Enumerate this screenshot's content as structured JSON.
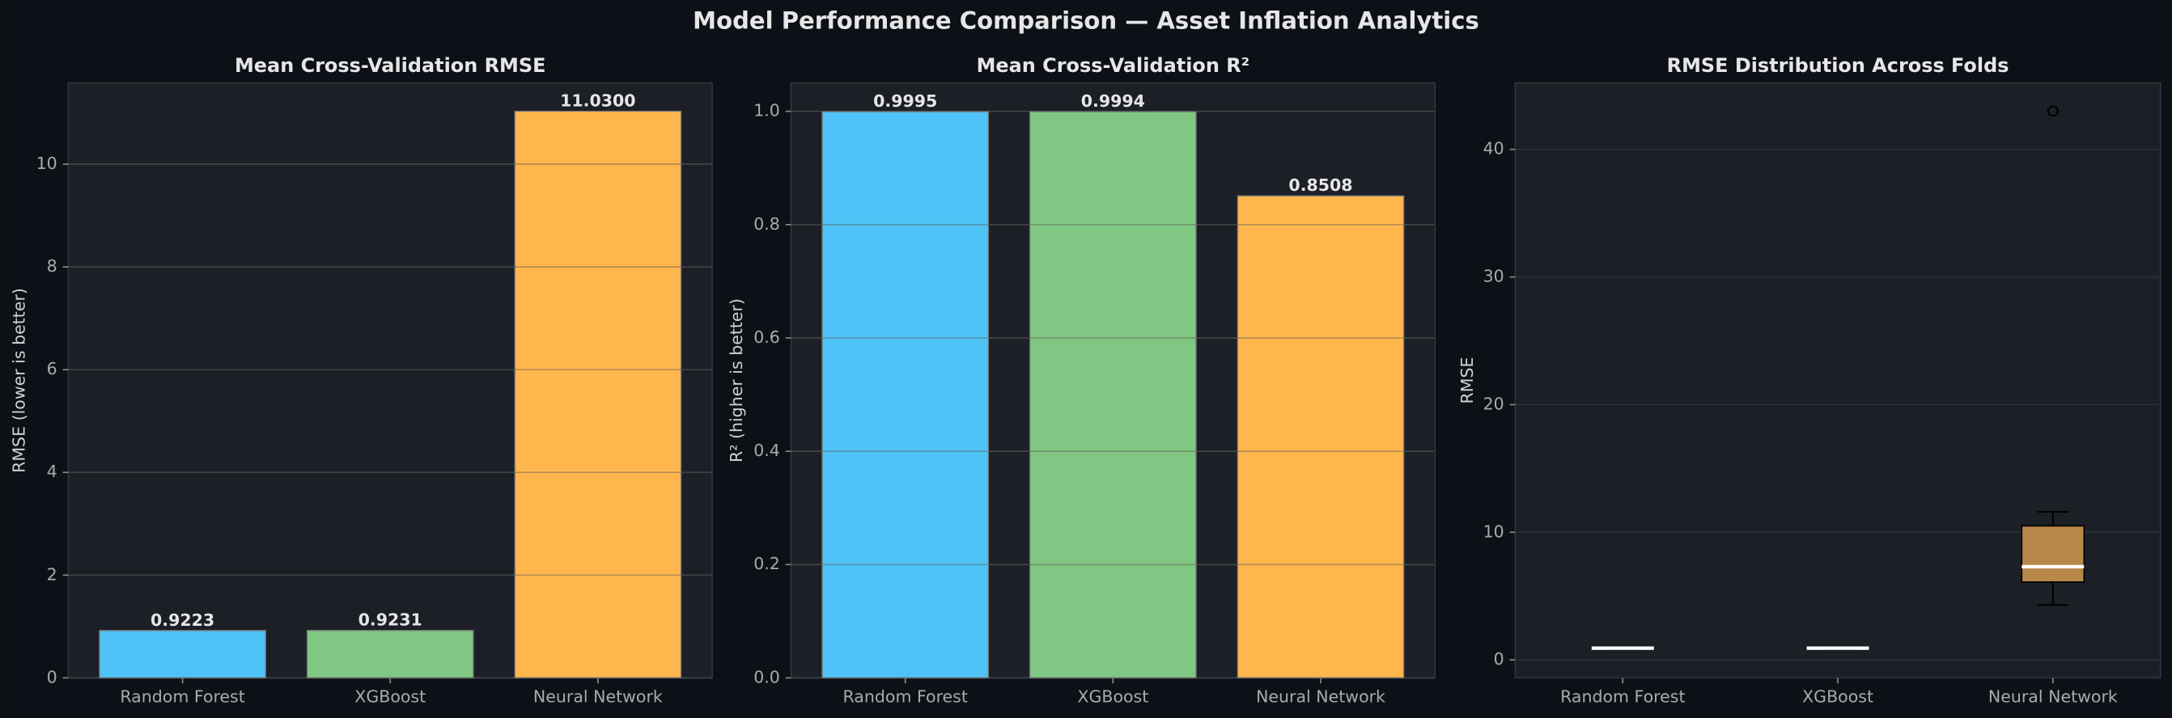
{
  "title": "Model Performance Comparison — Asset Inflation Analytics",
  "chart_data": [
    {
      "type": "bar",
      "title": "Mean Cross-Validation RMSE",
      "y_label": "RMSE (lower is better)",
      "categories": [
        "Random Forest",
        "XGBoost",
        "Neural Network"
      ],
      "values": [
        0.9223,
        0.9231,
        11.03
      ],
      "value_labels": [
        "0.9223",
        "0.9231",
        "11.0300"
      ],
      "colors": [
        "#4fc3f7",
        "#81c784",
        "#ffb74d"
      ],
      "ylim": [
        0,
        11.58
      ],
      "yticks": [
        0,
        2,
        4,
        6,
        8,
        10
      ],
      "grid": true
    },
    {
      "type": "bar",
      "title": "Mean Cross-Validation R²",
      "y_label": "R² (higher is better)",
      "categories": [
        "Random Forest",
        "XGBoost",
        "Neural Network"
      ],
      "values": [
        0.9995,
        0.9994,
        0.8508
      ],
      "value_labels": [
        "0.9995",
        "0.9994",
        "0.8508"
      ],
      "colors": [
        "#4fc3f7",
        "#81c784",
        "#ffb74d"
      ],
      "ylim": [
        0,
        1.05
      ],
      "yticks": [
        {
          "value": 0,
          "label": "0.0"
        },
        0.2,
        0.4,
        0.6,
        0.8,
        {
          "value": 1,
          "label": "1.0"
        }
      ],
      "grid": true
    },
    {
      "type": "box",
      "title": "RMSE Distribution Across Folds",
      "y_label": "RMSE",
      "categories": [
        "Random Forest",
        "XGBoost",
        "Neural Network"
      ],
      "boxes": [
        {
          "min": 0.85,
          "q1": 0.89,
          "median": 0.92,
          "q3": 0.95,
          "max": 0.99,
          "outliers": []
        },
        {
          "min": 0.85,
          "q1": 0.89,
          "median": 0.92,
          "q3": 0.95,
          "max": 0.99,
          "outliers": []
        },
        {
          "min": 4.3,
          "q1": 6.1,
          "median": 7.3,
          "q3": 10.5,
          "max": 11.6,
          "outliers": [
            43
          ]
        }
      ],
      "color": "#b8884a",
      "ylim": [
        -1.41,
        45.2
      ],
      "yticks": [
        0,
        10,
        20,
        30,
        40
      ],
      "grid": true
    }
  ]
}
